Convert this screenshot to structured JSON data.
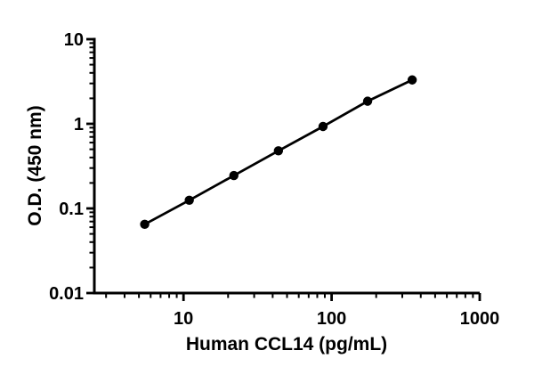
{
  "figure": {
    "background": "#ffffff",
    "ink_color": "#000000"
  },
  "chart_data": {
    "type": "line",
    "title": "",
    "xlabel": "Human CCL14 (pg/mL)",
    "ylabel": "O.D. (450 nm)",
    "x_scale": "log",
    "y_scale": "log",
    "xlim": [
      2.5,
      1000
    ],
    "ylim": [
      0.01,
      10
    ],
    "x_major_ticks": [
      10,
      100,
      1000
    ],
    "x_tick_labels": [
      "10",
      "100",
      "1000"
    ],
    "y_major_ticks": [
      0.01,
      0.1,
      1,
      10
    ],
    "y_tick_labels": [
      "0.01",
      "0.1",
      "1",
      "10"
    ],
    "grid": false,
    "legend": "none",
    "series": [
      {
        "name": "standard-curve",
        "marker": "filled-circle",
        "marker_color": "#000000",
        "line_color": "#000000",
        "points": [
          {
            "x": 5.47,
            "y": 0.065
          },
          {
            "x": 10.94,
            "y": 0.125
          },
          {
            "x": 21.88,
            "y": 0.245
          },
          {
            "x": 43.75,
            "y": 0.48
          },
          {
            "x": 87.5,
            "y": 0.93
          },
          {
            "x": 175,
            "y": 1.85
          },
          {
            "x": 350,
            "y": 3.3
          }
        ]
      }
    ]
  }
}
